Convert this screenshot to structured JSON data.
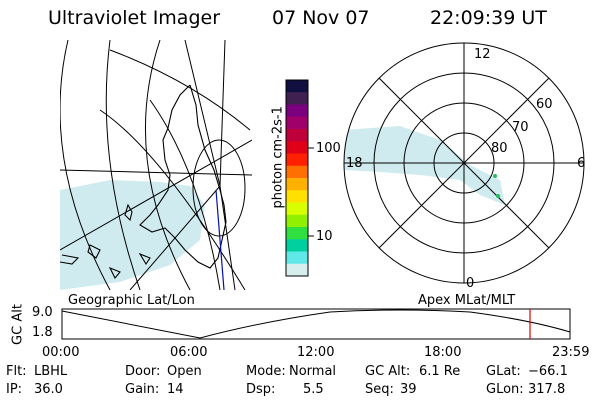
{
  "header": {
    "instrument": "Ultraviolet Imager",
    "date": "07 Nov 07",
    "time": "22:09:39 UT"
  },
  "colorbar": {
    "label": "photon cm-2s-1",
    "ticks": [
      "100",
      "10"
    ],
    "colors": [
      "#101040",
      "#402050",
      "#7a0080",
      "#a0006a",
      "#c0003a",
      "#e00018",
      "#ff2000",
      "#ff7000",
      "#ffb000",
      "#ffe000",
      "#d8ff00",
      "#90f000",
      "#30e040",
      "#00d0a0",
      "#60e8e8",
      "#d6eeee"
    ]
  },
  "polar_plot": {
    "mlt_labels": [
      "12",
      "18",
      "6",
      "0"
    ],
    "lat_labels": [
      "60",
      "70",
      "80"
    ]
  },
  "map_labels": {
    "left": "Geographic Lat/Lon",
    "right": "Apex MLat/MLT"
  },
  "altitude_plot": {
    "ylabel": "GC Alt",
    "yticks": [
      "9.0",
      "1.8"
    ],
    "xticks": [
      "00:00",
      "06:00",
      "12:00",
      "18:00",
      "23:59"
    ],
    "current_marker_time": "22:09",
    "marker_color": "#e00000"
  },
  "status": {
    "flt_label": "Flt:",
    "flt_value": "LBHL",
    "ip_label": "IP:",
    "ip_value": "36.0",
    "door_label": "Door:",
    "door_value": "Open",
    "gain_label": "Gain:",
    "gain_value": "14",
    "mode_label": "Mode:",
    "mode_value": "Normal",
    "dsp_label": "Dsp:",
    "dsp_value": "5.5",
    "gcalt_label": "GC Alt:",
    "gcalt_value": "6.1 Re",
    "seq_label": "Seq:",
    "seq_value": "39",
    "glat_label": "GLat:",
    "glat_value": "−66.1",
    "glon_label": "GLon:",
    "glon_value": "317.8"
  }
}
